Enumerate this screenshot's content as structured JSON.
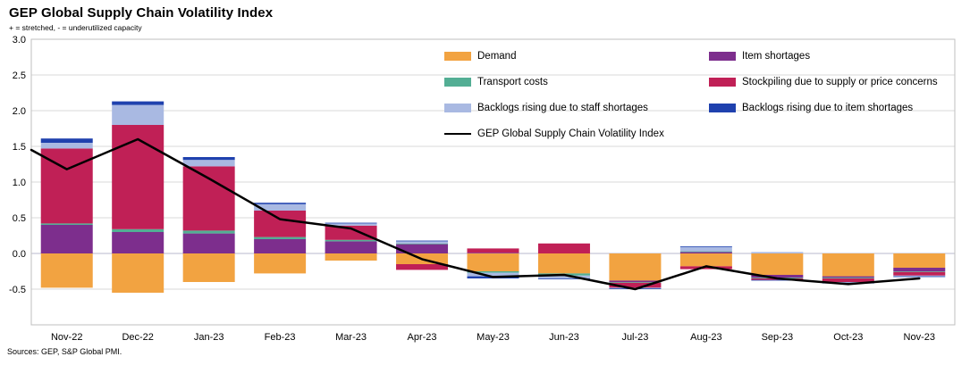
{
  "title": "GEP Global Supply Chain Volatility Index",
  "subtitle": "+ = stretched, - = underutilized capacity",
  "source": "Sources: GEP, S&P Global PMI.",
  "chart_data": {
    "type": "bar",
    "subtype": "stacked-bars-with-line-overlay",
    "title": "GEP Global Supply Chain Volatility Index",
    "xlabel": "",
    "ylabel": "",
    "ylim": [
      -1.0,
      3.0
    ],
    "yticks": [
      3.0,
      2.5,
      2.0,
      1.5,
      1.0,
      0.5,
      0.0,
      -0.5
    ],
    "grid": true,
    "legend_position": "top-center-inside",
    "categories": [
      "Nov-22",
      "Dec-22",
      "Jan-23",
      "Feb-23",
      "Mar-23",
      "Apr-23",
      "May-23",
      "Jun-23",
      "Jul-23",
      "Aug-23",
      "Sep-23",
      "Oct-23",
      "Nov-23"
    ],
    "series": [
      {
        "name": "Demand",
        "color": "#F2A341",
        "values": [
          -0.48,
          -0.55,
          -0.4,
          -0.28,
          -0.1,
          -0.15,
          -0.25,
          -0.28,
          -0.38,
          -0.18,
          -0.3,
          -0.32,
          -0.2
        ]
      },
      {
        "name": "Item shortages",
        "color": "#7D2E8D",
        "values": [
          0.4,
          0.3,
          0.28,
          0.2,
          0.17,
          0.13,
          0.01,
          0.0,
          -0.02,
          0.02,
          -0.04,
          -0.02,
          -0.05
        ]
      },
      {
        "name": "Transport costs",
        "color": "#53AE94",
        "values": [
          0.02,
          0.04,
          0.04,
          0.03,
          0.02,
          0.01,
          -0.02,
          -0.03,
          -0.01,
          0.01,
          -0.01,
          -0.01,
          -0.01
        ]
      },
      {
        "name": "Stockpiling due to supply or price concerns",
        "color": "#C02056",
        "values": [
          1.05,
          1.46,
          0.9,
          0.37,
          0.2,
          -0.08,
          0.06,
          0.14,
          -0.07,
          -0.04,
          -0.02,
          -0.05,
          -0.05
        ]
      },
      {
        "name": "Backlogs rising due to staff shortages",
        "color": "#A9B9E2",
        "values": [
          0.08,
          0.28,
          0.09,
          0.09,
          0.03,
          0.03,
          -0.05,
          -0.04,
          -0.01,
          0.06,
          0.02,
          -0.01,
          -0.01
        ]
      },
      {
        "name": "Backlogs rising due to item shortages",
        "color": "#1F41AE",
        "values": [
          0.06,
          0.05,
          0.04,
          0.02,
          0.01,
          0.01,
          -0.03,
          -0.01,
          -0.01,
          0.01,
          -0.01,
          -0.01,
          -0.01
        ]
      }
    ],
    "line": {
      "name": "GEP Global Supply Chain Volatility Index",
      "color": "#000000",
      "edge_start": 1.45,
      "values": [
        1.18,
        1.6,
        1.05,
        0.48,
        0.35,
        -0.08,
        -0.33,
        -0.3,
        -0.5,
        -0.18,
        -0.35,
        -0.43,
        -0.35
      ]
    },
    "colors": {
      "grid": "#d9d9d9",
      "zero_line": "#b9b9cc",
      "plot_border": "#bfbfbf"
    }
  }
}
